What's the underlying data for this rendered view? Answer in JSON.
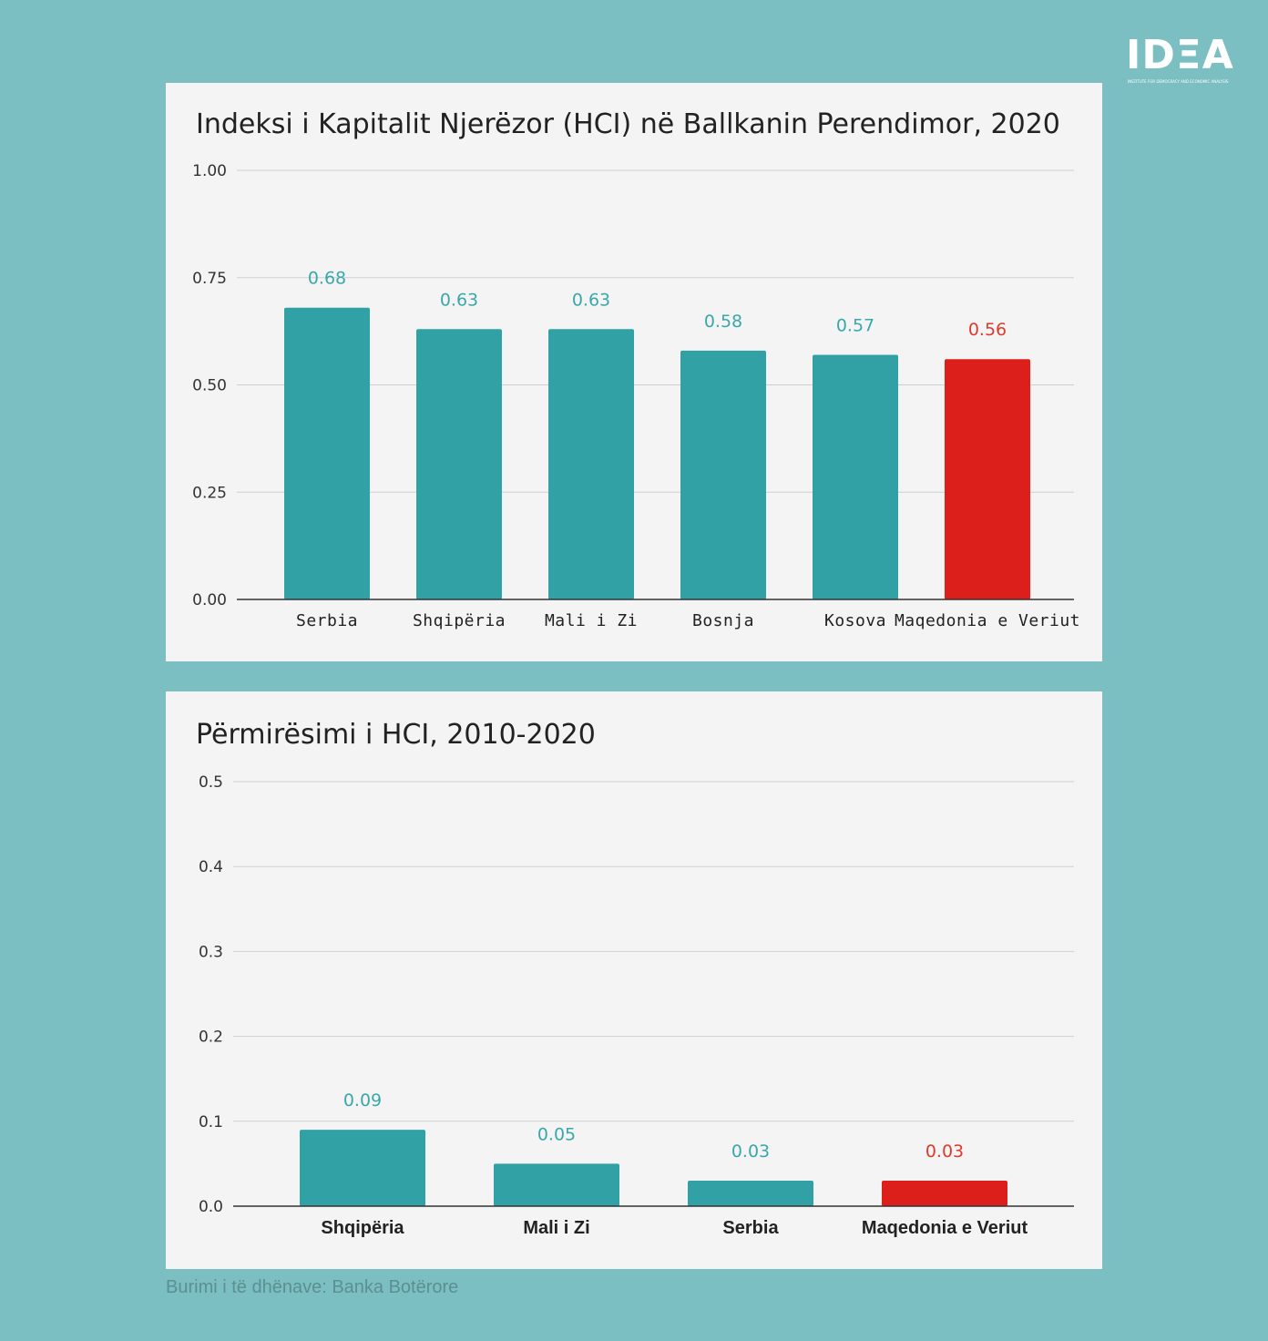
{
  "brand": {
    "logo_text": "IDΞA",
    "logo_subtitle": "INSTITUTE FOR DEMOCRACY AND ECONOMIC ANALYSIS"
  },
  "colors": {
    "background": "#7bbfc3",
    "panel": "#f4f4f4",
    "bar_default": "#32a1a5",
    "bar_highlight": "#dc1f1a",
    "label_default": "#3aa7ab",
    "label_highlight": "#dc3a2e"
  },
  "source_text": "Burimi i të dhënave: Banka Botërore",
  "chart_data": [
    {
      "type": "bar",
      "title": "Indeksi i Kapitalit Njerëzor (HCI) në Ballkanin Perendimor, 2020",
      "xlabel": "",
      "ylabel": "",
      "categories": [
        "Serbia",
        "Shqipëria",
        "Mali i Zi",
        "Bosnja",
        "Kosova",
        "Maqedonia e Veriut"
      ],
      "values": [
        0.68,
        0.63,
        0.63,
        0.58,
        0.57,
        0.56
      ],
      "value_labels": [
        "0.68",
        "0.63",
        "0.63",
        "0.58",
        "0.57",
        "0.56"
      ],
      "highlight": "Maqedonia e Veriut",
      "ylim": [
        0,
        1
      ],
      "yticks": [
        "0.00",
        "0.25",
        "0.50",
        "0.75",
        "1.00"
      ],
      "ytick_values": [
        0,
        0.25,
        0.5,
        0.75,
        1.0
      ],
      "grid": true,
      "legend": "none"
    },
    {
      "type": "bar",
      "title": "Përmirësimi i HCI, 2010-2020",
      "xlabel": "",
      "ylabel": "",
      "categories": [
        "Shqipëria",
        "Mali i Zi",
        "Serbia",
        "Maqedonia e Veriut"
      ],
      "values": [
        0.09,
        0.05,
        0.03,
        0.03
      ],
      "value_labels": [
        "0.09",
        "0.05",
        "0.03",
        "0.03"
      ],
      "highlight": "Maqedonia e Veriut",
      "ylim": [
        0,
        0.5
      ],
      "yticks": [
        "0.0",
        "0.1",
        "0.2",
        "0.3",
        "0.4",
        "0.5"
      ],
      "ytick_values": [
        0,
        0.1,
        0.2,
        0.3,
        0.4,
        0.5
      ],
      "grid": true,
      "legend": "none"
    }
  ]
}
